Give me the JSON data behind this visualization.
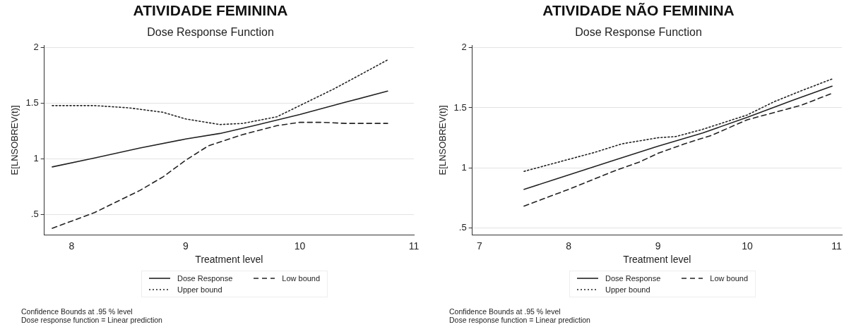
{
  "chart_data": [
    {
      "type": "line",
      "title": "ATIVIDADE FEMININA",
      "subtitle": "Dose Response Function",
      "xlabel": "Treatment level",
      "ylabel": "E[LNSOBREV(t)]",
      "xlim": [
        7.76,
        11.0
      ],
      "ylim": [
        0.32,
        2.02
      ],
      "xticks": [
        8,
        9,
        10,
        11
      ],
      "yticks": [
        {
          "value": 0.5,
          "label": ".5"
        },
        1,
        1.5,
        2
      ],
      "grid": "y",
      "legend": "bottom",
      "marker": "none",
      "annotations": [
        "Confidence Bounds at .95 % level",
        "Dose response function = Linear prediction"
      ],
      "series": [
        {
          "name": "Dose Response",
          "color": "#222222",
          "line_style": "solid",
          "x": [
            7.83,
            8.2,
            8.6,
            9.0,
            9.3,
            9.6,
            10.0,
            10.4,
            10.77
          ],
          "values": [
            0.93,
            1.01,
            1.1,
            1.18,
            1.23,
            1.3,
            1.4,
            1.51,
            1.61
          ]
        },
        {
          "name": "Low bound",
          "color": "#222222",
          "line_style": "dashed",
          "x": [
            7.83,
            8.2,
            8.6,
            8.8,
            9.0,
            9.2,
            9.5,
            9.8,
            10.0,
            10.2,
            10.4,
            10.77
          ],
          "values": [
            0.38,
            0.52,
            0.72,
            0.84,
            0.99,
            1.12,
            1.22,
            1.3,
            1.33,
            1.33,
            1.32,
            1.32
          ]
        },
        {
          "name": "Upper bound",
          "color": "#222222",
          "line_style": "dotted",
          "x": [
            7.83,
            8.2,
            8.5,
            8.8,
            9.0,
            9.3,
            9.5,
            9.8,
            10.0,
            10.3,
            10.5,
            10.77
          ],
          "values": [
            1.48,
            1.48,
            1.46,
            1.42,
            1.36,
            1.31,
            1.32,
            1.38,
            1.48,
            1.63,
            1.74,
            1.89
          ]
        }
      ]
    },
    {
      "type": "line",
      "title": "ATIVIDADE NÃO FEMININA",
      "subtitle": "Dose Response Function",
      "xlabel": "Treatment level",
      "ylabel": "E[LNSOBREV(t)]",
      "xlim": [
        6.92,
        11.06
      ],
      "ylim": [
        0.44,
        2.02
      ],
      "xticks": [
        7,
        8,
        9,
        10,
        11
      ],
      "yticks": [
        {
          "value": 0.5,
          "label": ".5"
        },
        1,
        1.5,
        2
      ],
      "grid": "y",
      "legend": "bottom",
      "marker": "none",
      "annotations": [
        "Confidence Bounds at .95 % level",
        "Dose response function = Linear prediction"
      ],
      "series": [
        {
          "name": "Dose Response",
          "color": "#222222",
          "line_style": "solid",
          "x": [
            7.5,
            8.0,
            8.5,
            9.0,
            9.5,
            10.0,
            10.5,
            10.95
          ],
          "values": [
            0.82,
            0.94,
            1.06,
            1.18,
            1.29,
            1.42,
            1.56,
            1.68
          ]
        },
        {
          "name": "Low bound",
          "color": "#222222",
          "line_style": "dashed",
          "x": [
            7.5,
            8.0,
            8.5,
            8.8,
            9.0,
            9.3,
            9.6,
            10.0,
            10.3,
            10.6,
            10.95
          ],
          "values": [
            0.68,
            0.82,
            0.97,
            1.05,
            1.12,
            1.2,
            1.27,
            1.4,
            1.46,
            1.52,
            1.62
          ]
        },
        {
          "name": "Upper bound",
          "color": "#222222",
          "line_style": "dotted",
          "x": [
            7.5,
            8.0,
            8.3,
            8.6,
            9.0,
            9.2,
            9.5,
            10.0,
            10.3,
            10.6,
            10.95
          ],
          "values": [
            0.97,
            1.07,
            1.13,
            1.2,
            1.25,
            1.26,
            1.32,
            1.44,
            1.55,
            1.64,
            1.74
          ]
        }
      ]
    }
  ]
}
